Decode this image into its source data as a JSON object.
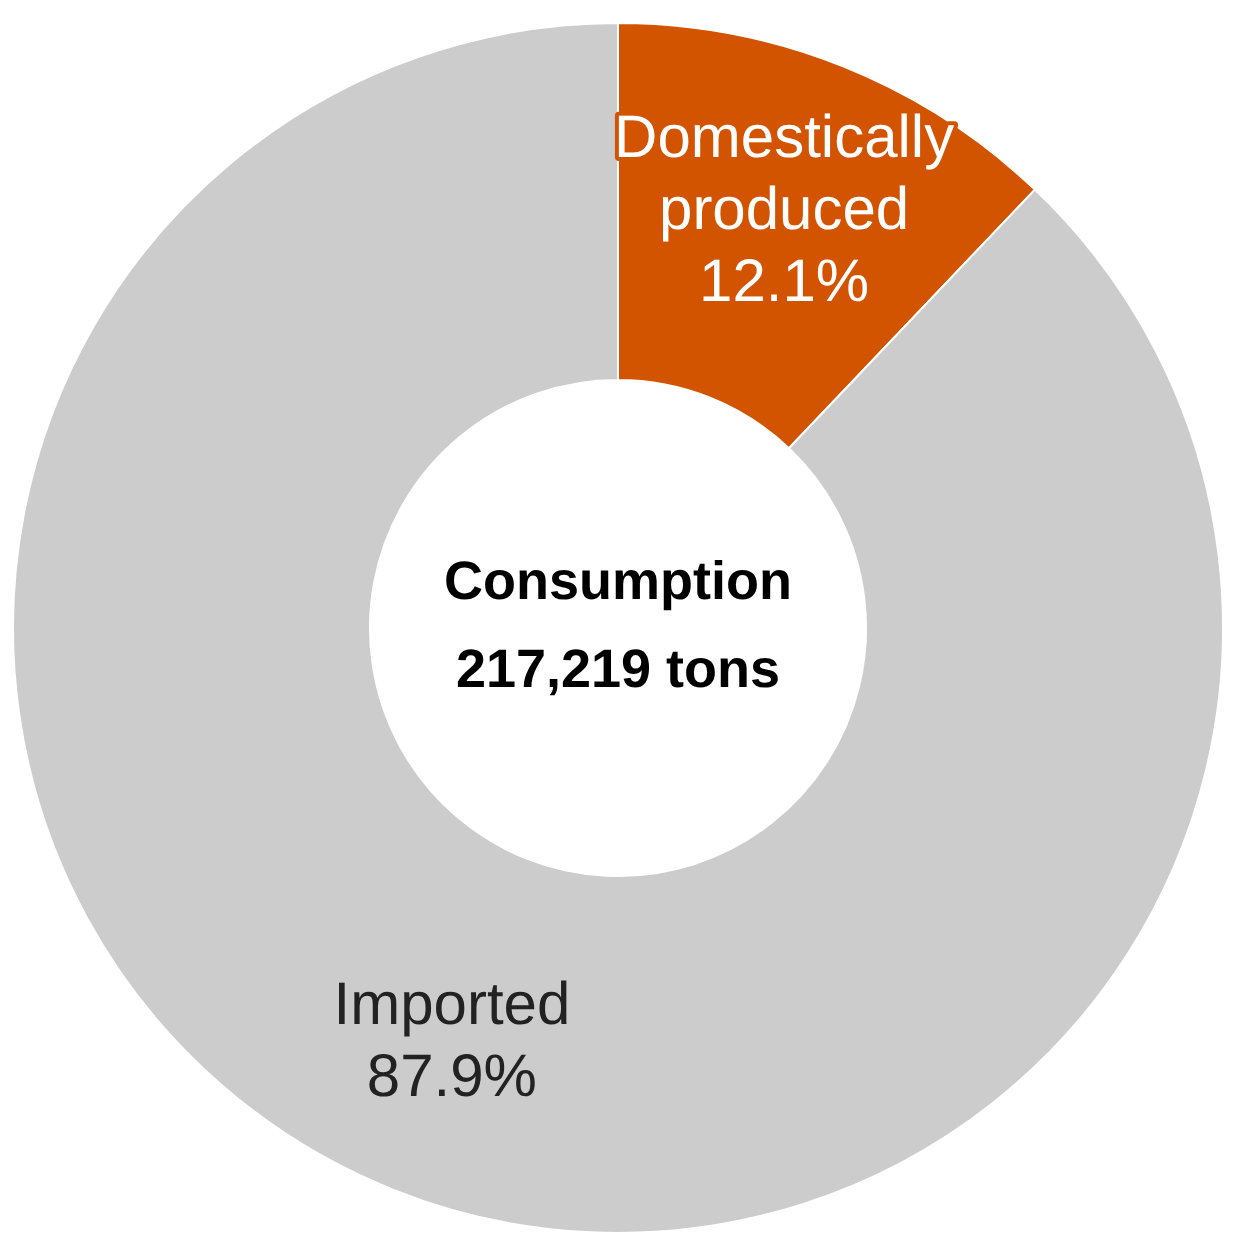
{
  "chart_data": {
    "type": "donut",
    "categories": [
      "Domestically produced",
      "Imported"
    ],
    "values": [
      12.1,
      87.9
    ],
    "value_labels": [
      "12.1%",
      "87.9%"
    ],
    "colors": [
      "#d35400",
      "#cccccc"
    ],
    "annotations": [
      "Consumption",
      "217,219 tons"
    ],
    "legend": false
  }
}
